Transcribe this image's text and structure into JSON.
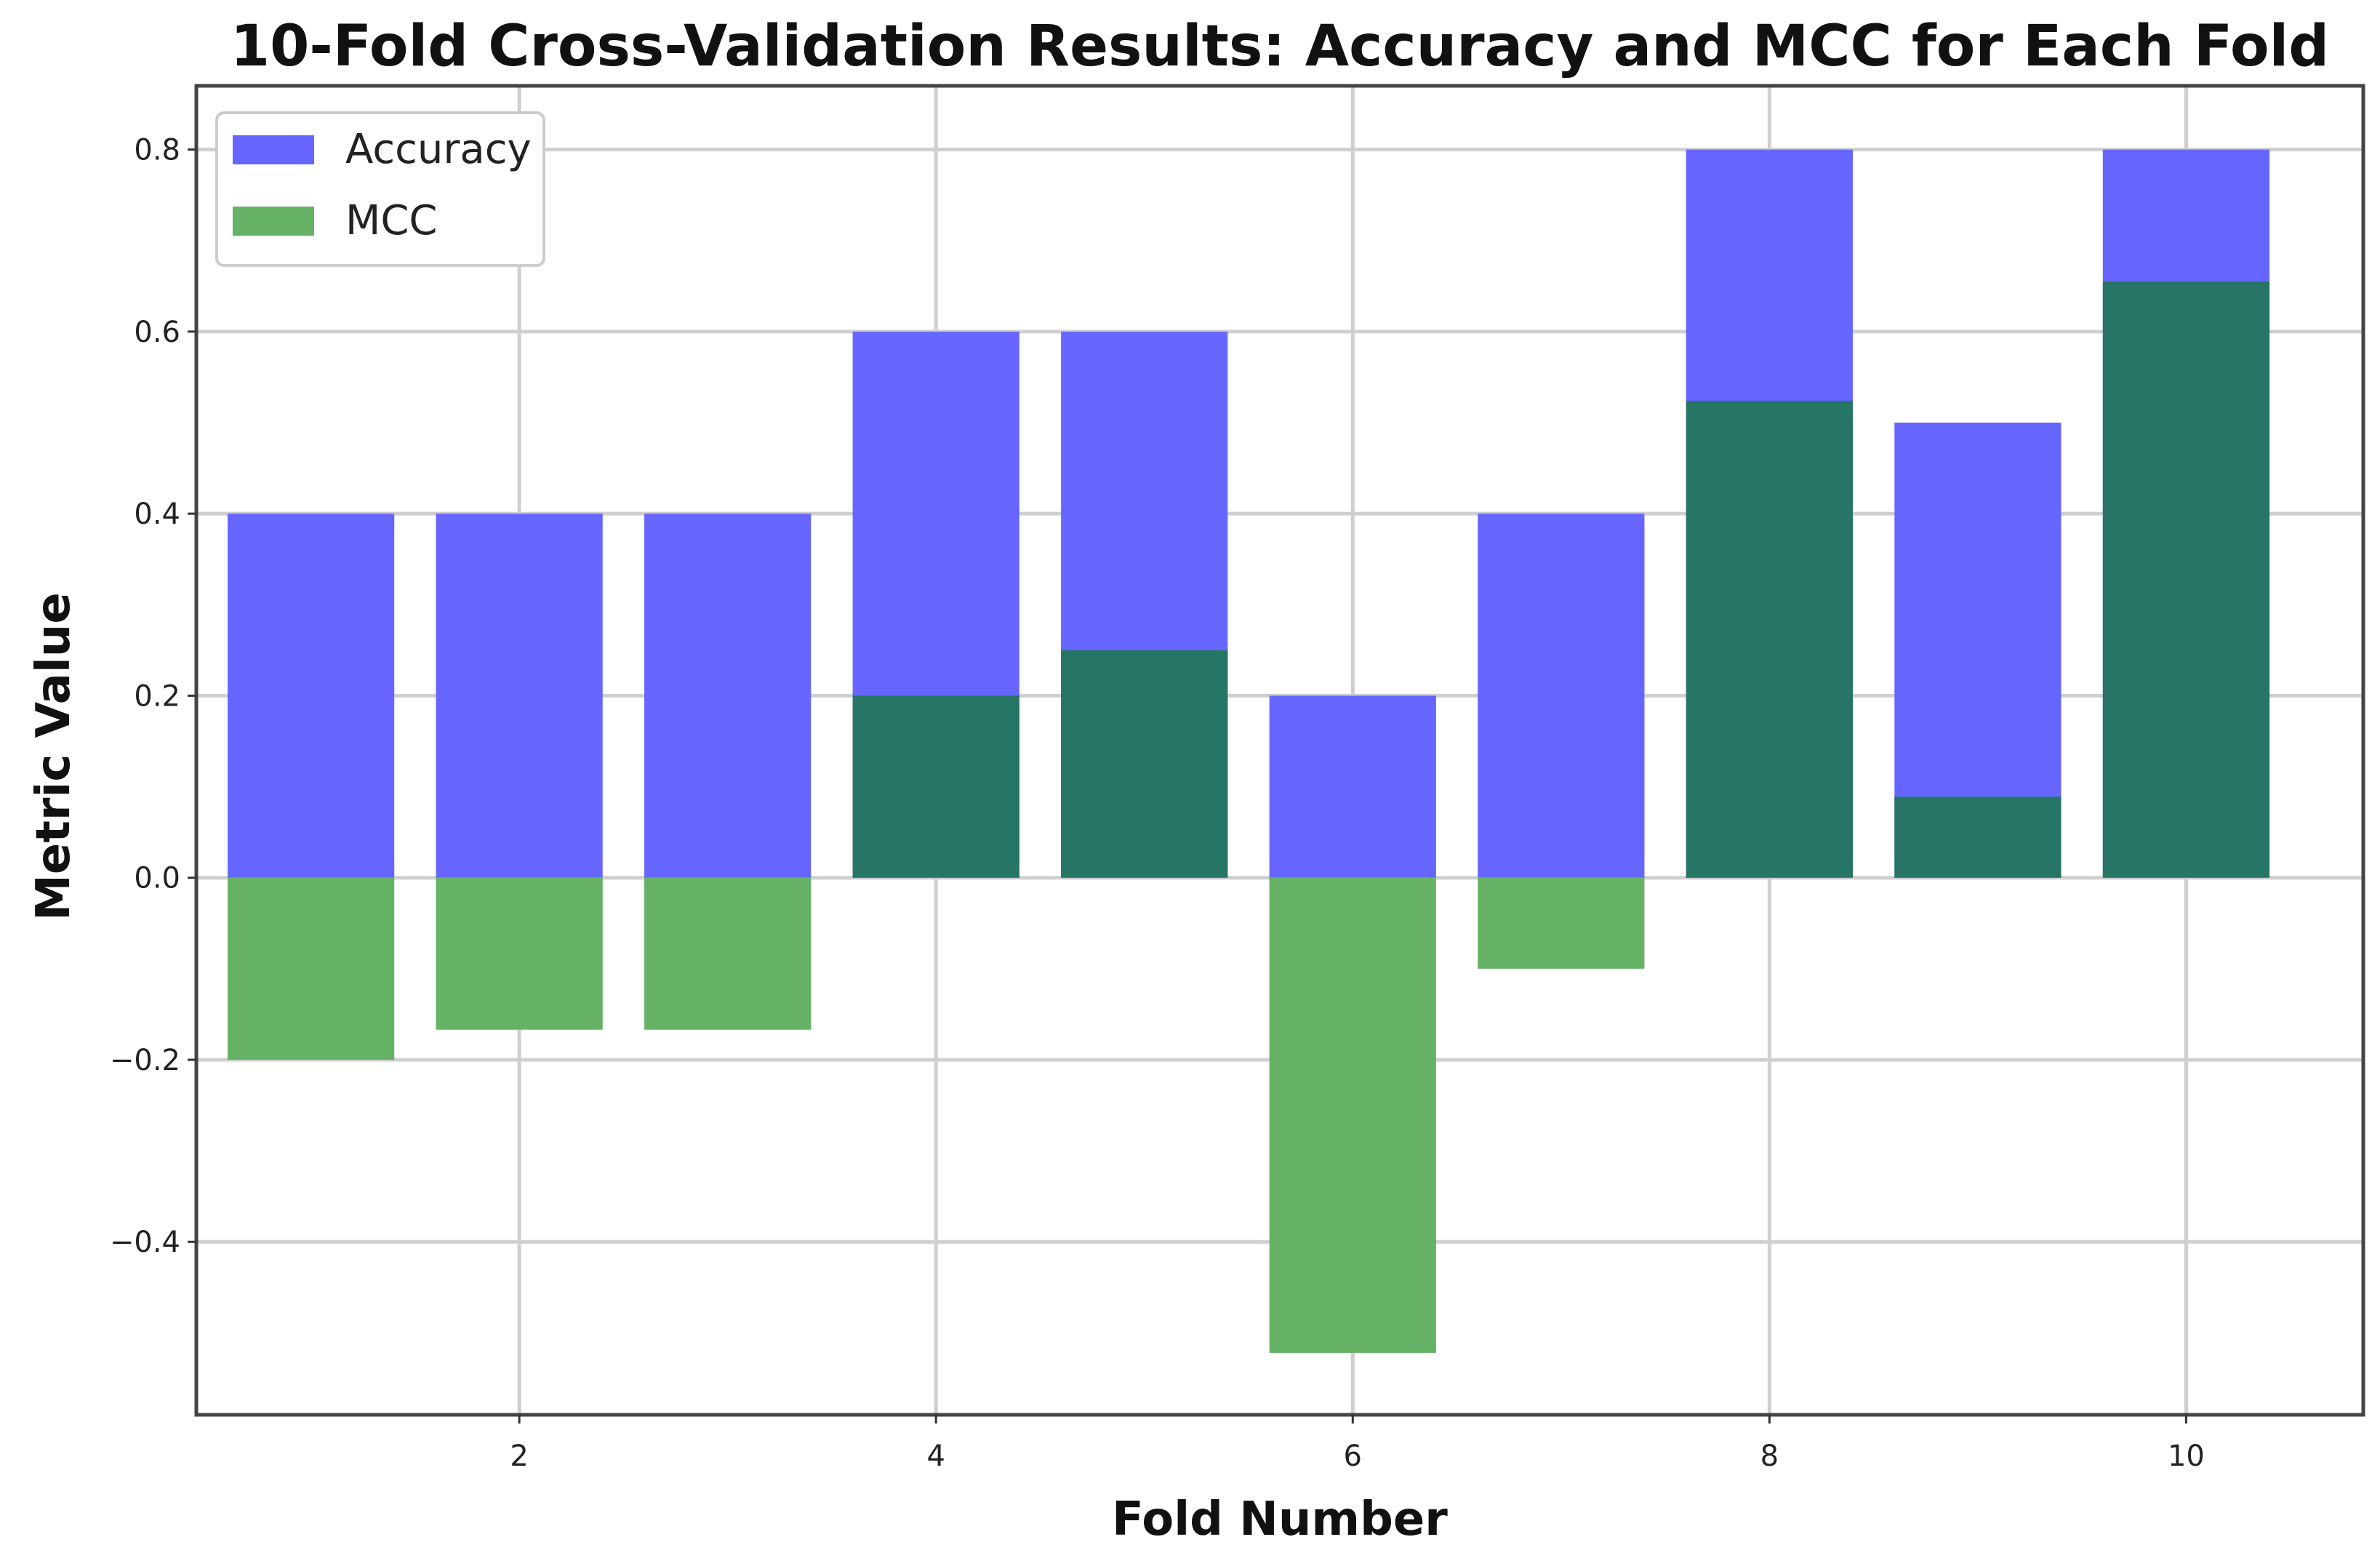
{
  "chart_data": {
    "type": "bar",
    "title": "10-Fold Cross-Validation Results: Accuracy and MCC for Each Fold",
    "xlabel": "Fold Number",
    "ylabel": "Metric Value",
    "categories": [
      1,
      2,
      3,
      4,
      5,
      6,
      7,
      8,
      9,
      10
    ],
    "series": [
      {
        "name": "Accuracy",
        "color": "#6666ff",
        "values": [
          0.4,
          0.4,
          0.4,
          0.6,
          0.6,
          0.2,
          0.4,
          0.8,
          0.5,
          0.8
        ]
      },
      {
        "name": "MCC",
        "color": "#66b266",
        "values": [
          -0.2,
          -0.167,
          -0.167,
          0.2,
          0.25,
          -0.522,
          -0.1,
          0.524,
          0.089,
          0.655
        ]
      }
    ],
    "overlap_color": "#267565",
    "xlim": [
      0.45,
      10.85
    ],
    "ylim": [
      -0.59,
      0.87
    ],
    "xticks": [
      2,
      4,
      6,
      8,
      10
    ],
    "xtick_labels": [
      "2",
      "4",
      "6",
      "8",
      "10"
    ],
    "yticks": [
      -0.4,
      -0.2,
      0.0,
      0.2,
      0.4,
      0.6,
      0.8
    ],
    "ytick_labels": [
      "−0.4",
      "−0.2",
      "0.0",
      "0.2",
      "0.4",
      "0.6",
      "0.8"
    ],
    "grid": true,
    "legend_position": "top-left"
  }
}
